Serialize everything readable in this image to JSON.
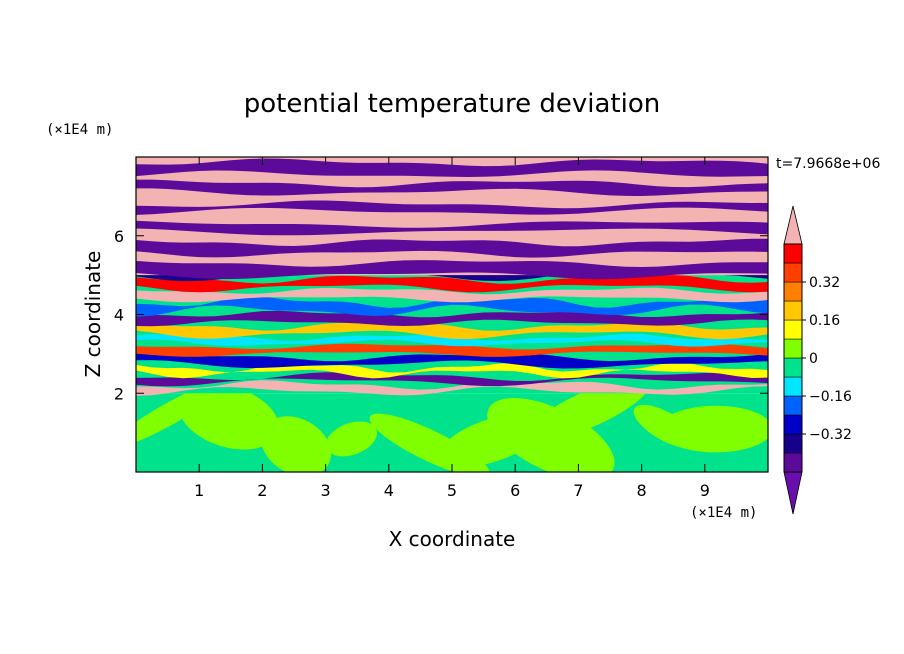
{
  "chart_data": {
    "type": "heatmap",
    "title": "potential temperature deviation",
    "xlabel": "X coordinate",
    "ylabel": "Z coordinate",
    "x_unit": "(×1E4 m)",
    "y_unit": "(×1E4 m)",
    "time_label": "t=7.9668e+06",
    "xlim": [
      0,
      10
    ],
    "ylim": [
      0,
      8
    ],
    "x_ticks": [
      "1",
      "2",
      "3",
      "4",
      "5",
      "6",
      "7",
      "8",
      "9"
    ],
    "y_ticks": [
      "2",
      "4",
      "6"
    ],
    "colorbar": {
      "levels": [
        -0.48,
        -0.4,
        -0.32,
        -0.24,
        -0.16,
        -0.08,
        0,
        0.08,
        0.16,
        0.24,
        0.32,
        0.4,
        0.48
      ],
      "tick_labels": [
        "0.32",
        "0.16",
        "0",
        "−0.16",
        "−0.32"
      ],
      "tick_values": [
        0.32,
        0.16,
        0,
        -0.16,
        -0.32
      ],
      "colors_bottom_to_top": [
        "#5c0a99",
        "#17008c",
        "#0000c8",
        "#0063ff",
        "#00e6ff",
        "#00e38c",
        "#80ff00",
        "#ffff00",
        "#ffc800",
        "#ff8000",
        "#ff4000",
        "#ff0000",
        "#f4b3b3"
      ],
      "over_color": "#f4b3b3",
      "under_color": "#6a0dad"
    },
    "regions": {
      "lower_layer": "near-neutral (green) turbulent layer from z=0 to z≈2",
      "middle_layer": "mixed positive and negative deviations from z≈2 to z≈5",
      "upper_layer": "alternating strong positive (pink) and negative (purple) horizontal bands above z≈5"
    }
  }
}
